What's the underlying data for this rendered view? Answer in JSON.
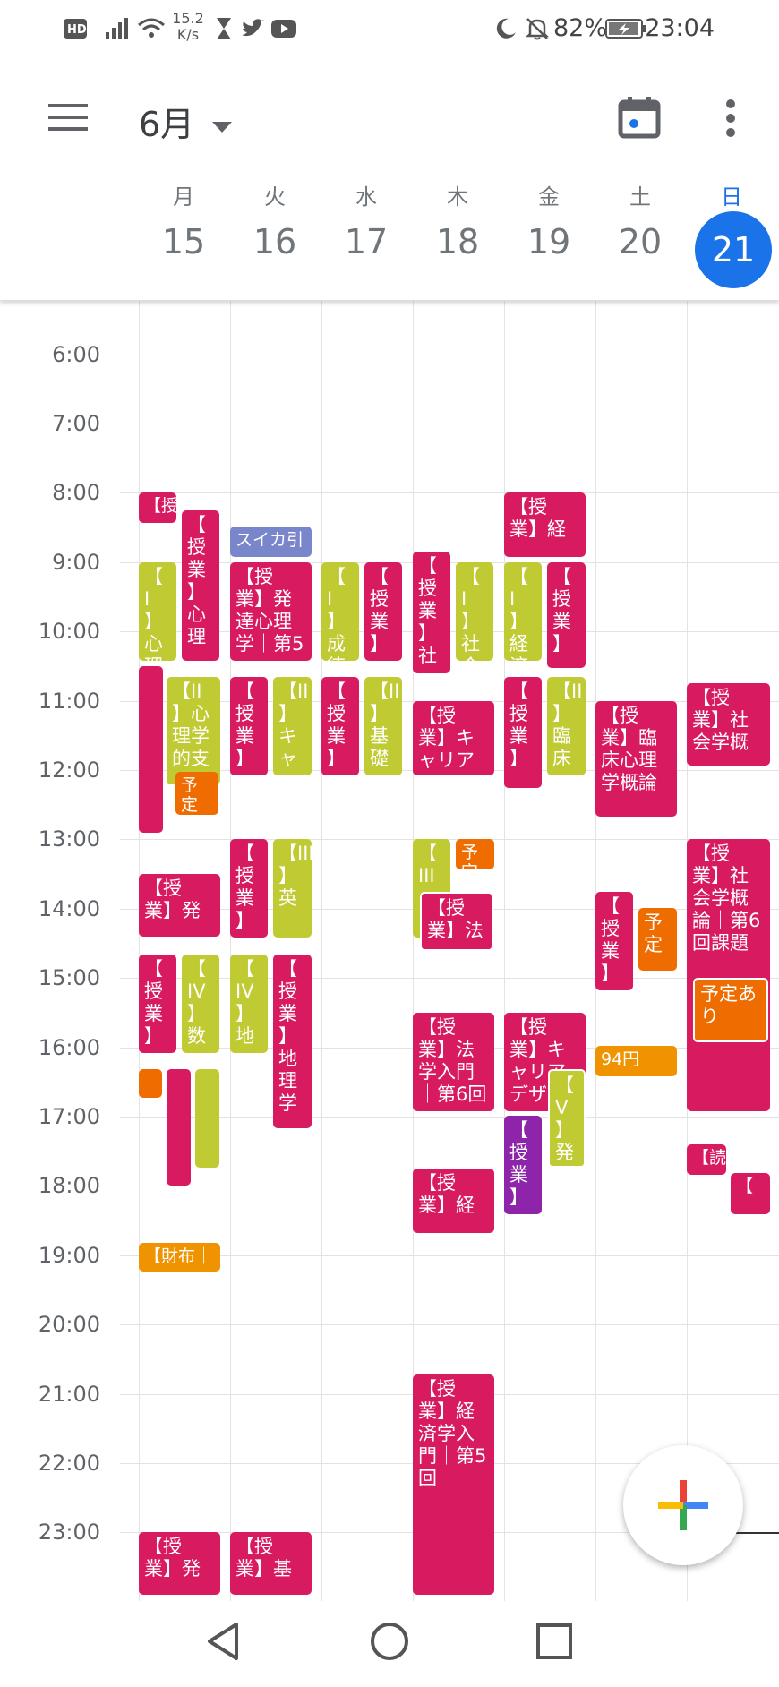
{
  "status_bar": {
    "net_speed_value": "15.2",
    "net_speed_unit": "K/s",
    "battery": "82%",
    "time": "23:04"
  },
  "app_bar": {
    "month": "6月"
  },
  "days": [
    {
      "dow": "月",
      "num": "15"
    },
    {
      "dow": "火",
      "num": "16"
    },
    {
      "dow": "水",
      "num": "17"
    },
    {
      "dow": "木",
      "num": "18"
    },
    {
      "dow": "金",
      "num": "19"
    },
    {
      "dow": "土",
      "num": "20"
    },
    {
      "dow": "日",
      "num": "21"
    }
  ],
  "hours": [
    "6:00",
    "7:00",
    "8:00",
    "9:00",
    "10:00",
    "11:00",
    "12:00",
    "13:00",
    "14:00",
    "15:00",
    "16:00",
    "17:00",
    "18:00",
    "19:00",
    "20:00",
    "21:00",
    "22:00",
    "23:00"
  ],
  "colors": {
    "magenta": "#d81b60",
    "olive": "#c0ca33",
    "orange": "#ef6c00",
    "amber": "#f09300",
    "lavender": "#7986cb",
    "purple": "#8e24aa",
    "today_blue": "#1a73e8"
  },
  "events": [
    {
      "text": "【授",
      "color": "#d81b60"
    },
    {
      "text": "【\n授\n業\n】心\n理",
      "color": "#d81b60"
    },
    {
      "text": "【\nI\n】心\n理",
      "color": "#c0ca33"
    },
    {
      "text": "",
      "color": "#d81b60"
    },
    {
      "text": "【II\n】心\n理学\n的支",
      "color": "#c0ca33"
    },
    {
      "text": "予定",
      "color": "#ef6c00"
    },
    {
      "text": "【授\n業】発",
      "color": "#d81b60"
    },
    {
      "text": "【\n授\n業\n】",
      "color": "#d81b60"
    },
    {
      "text": "【\nIV\n】数",
      "color": "#c0ca33"
    },
    {
      "text": "",
      "color": "#ef6c00"
    },
    {
      "text": "",
      "color": "#d81b60"
    },
    {
      "text": "",
      "color": "#c0ca33"
    },
    {
      "text": "【財布｜",
      "color": "#f09300"
    },
    {
      "text": "【授\n業】発",
      "color": "#d81b60"
    },
    {
      "text": "スイカ引",
      "color": "#7986cb"
    },
    {
      "text": "【授\n業】発\n達心理\n学｜第5",
      "color": "#d81b60"
    },
    {
      "text": "【\n授\n業\n】",
      "color": "#d81b60"
    },
    {
      "text": "【II\n】キ\nャ",
      "color": "#c0ca33"
    },
    {
      "text": "【\n授\n業\n】",
      "color": "#d81b60"
    },
    {
      "text": "【III\n】英",
      "color": "#c0ca33"
    },
    {
      "text": "【\nIV\n】地",
      "color": "#c0ca33"
    },
    {
      "text": "【\n授\n業\n】地\n理学",
      "color": "#d81b60"
    },
    {
      "text": "【授\n業】基",
      "color": "#d81b60"
    },
    {
      "text": "【\nI\n】成\n徳",
      "color": "#c0ca33"
    },
    {
      "text": "【\n授\n業\n】",
      "color": "#d81b60"
    },
    {
      "text": "【\n授\n業\n】",
      "color": "#d81b60"
    },
    {
      "text": "【II\n】基\n礎",
      "color": "#c0ca33"
    },
    {
      "text": "【\n授\n業\n】社",
      "color": "#d81b60"
    },
    {
      "text": "【\nI\n】社\n会",
      "color": "#c0ca33"
    },
    {
      "text": "【授\n業】キ\nャリア",
      "color": "#d81b60"
    },
    {
      "text": "【\nIII",
      "color": "#c0ca33"
    },
    {
      "text": "予定",
      "color": "#ef6c00"
    },
    {
      "text": "【授\n業】法",
      "color": "#d81b60"
    },
    {
      "text": "【授\n業】法\n学入門\n｜第6回",
      "color": "#d81b60"
    },
    {
      "text": "【授\n業】経",
      "color": "#d81b60"
    },
    {
      "text": "【授\n業】経\n済学入\n門｜第5\n回",
      "color": "#d81b60"
    },
    {
      "text": "【授\n業】経",
      "color": "#d81b60"
    },
    {
      "text": "【\nI\n】経\n済",
      "color": "#c0ca33"
    },
    {
      "text": "【\n授\n業\n】",
      "color": "#d81b60"
    },
    {
      "text": "【\n授\n業\n】",
      "color": "#d81b60"
    },
    {
      "text": "【II\n】臨\n床",
      "color": "#c0ca33"
    },
    {
      "text": "【授\n業】キ\nャリア\nデザ",
      "color": "#d81b60"
    },
    {
      "text": "【\nV\n】発",
      "color": "#c0ca33"
    },
    {
      "text": "【\n授\n業\n】",
      "color": "#8e24aa"
    },
    {
      "text": "【授\n業】臨\n床心理\n学概論",
      "color": "#d81b60"
    },
    {
      "text": "【\n授\n業\n】",
      "color": "#d81b60"
    },
    {
      "text": "予\n定",
      "color": "#ef6c00"
    },
    {
      "text": "94円",
      "color": "#f09300"
    },
    {
      "text": "【授\n業】社\n会学概",
      "color": "#d81b60"
    },
    {
      "text": "【授\n業】社\n会学概\n論｜第6\n回課題",
      "color": "#d81b60"
    },
    {
      "text": "予定あ\nり",
      "color": "#ef6c00"
    },
    {
      "text": "【読",
      "color": "#d81b60"
    },
    {
      "text": "【",
      "color": "#d81b60"
    }
  ]
}
